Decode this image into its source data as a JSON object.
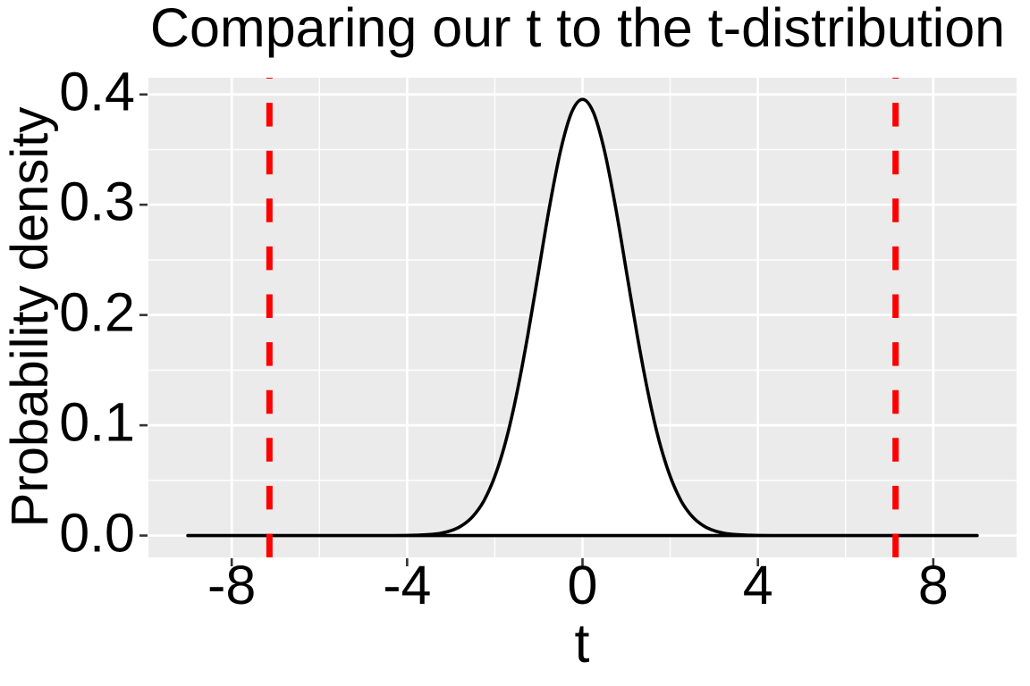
{
  "title": "Comparing our t to the t-distribution",
  "chart_data": {
    "type": "line",
    "title": "Comparing our t to the t-distribution",
    "xlabel": "t",
    "ylabel": "Probability density",
    "xlim": [
      -9.9,
      9.9
    ],
    "ylim": [
      -0.0198,
      0.4152
    ],
    "x_ticks": {
      "values": [
        -8,
        -4,
        0,
        4,
        8
      ],
      "labels": [
        "-8",
        "-4",
        "0",
        "4",
        "8"
      ]
    },
    "y_ticks": {
      "values": [
        0,
        0.1,
        0.2,
        0.3,
        0.4
      ],
      "labels": [
        "0.0",
        "0.1",
        "0.2",
        "0.3",
        "0.4"
      ]
    },
    "x_minor_ticks": [
      -6,
      -2,
      2,
      6
    ],
    "y_minor_ticks": [
      0.05,
      0.15,
      0.25,
      0.35
    ],
    "grid": "major and minor gridlines, white on gray panel",
    "legend_position": "none",
    "colors": {
      "panel_bg": "#EBEBEB",
      "grid": "#FFFFFF",
      "curve_stroke": "#000000",
      "curve_fill": "#FFFFFF",
      "vline": "#FF0000",
      "tick_mark": "#333333",
      "text": "#000000"
    },
    "series": [
      {
        "name": "t-distribution probability density curve",
        "type": "area",
        "x": [
          -9,
          -8,
          -7,
          -6,
          -5,
          -4.5,
          -4,
          -3.75,
          -3.5,
          -3.25,
          -3,
          -2.75,
          -2.5,
          -2.25,
          -2,
          -1.75,
          -1.5,
          -1.25,
          -1,
          -0.75,
          -0.5,
          -0.25,
          0,
          0.25,
          0.5,
          0.75,
          1,
          1.25,
          1.5,
          1.75,
          2,
          2.25,
          2.5,
          2.75,
          3,
          3.25,
          3.5,
          3.75,
          4,
          4.5,
          5,
          6,
          7,
          8,
          9
        ],
        "y": [
          0,
          0,
          0,
          0,
          0,
          0,
          0.0001,
          0.0004,
          0.0009,
          0.002,
          0.0044,
          0.009,
          0.0174,
          0.0314,
          0.0536,
          0.0856,
          0.1284,
          0.1811,
          0.24,
          0.2986,
          0.3492,
          0.3835,
          0.3956,
          0.3835,
          0.3492,
          0.2986,
          0.24,
          0.1811,
          0.1284,
          0.0856,
          0.0536,
          0.0314,
          0.0174,
          0.009,
          0.0044,
          0.002,
          0.0009,
          0.0004,
          0.0001,
          0,
          0,
          0,
          0,
          0,
          0
        ]
      },
      {
        "name": "observed t-statistic reference lines",
        "type": "vline",
        "style": "dashed",
        "color": "#FF0000",
        "x": [
          -7.14,
          7.14
        ]
      }
    ]
  }
}
